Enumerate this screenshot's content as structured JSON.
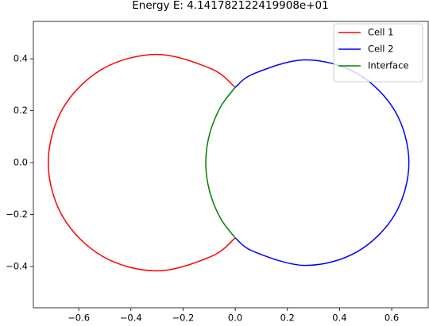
{
  "chart_data": {
    "type": "line",
    "title": "Energy E: 4.141782122419908e+01",
    "xlim": [
      -0.774,
      0.74
    ],
    "ylim": [
      -0.559,
      0.544
    ],
    "xticks": [
      {
        "value": -0.6,
        "label": "−0.6"
      },
      {
        "value": -0.4,
        "label": "−0.4"
      },
      {
        "value": -0.2,
        "label": "−0.2"
      },
      {
        "value": 0,
        "label": "0.0"
      },
      0.2,
      0.4,
      0.6
    ],
    "yticks": [
      {
        "value": -0.4,
        "label": "−0.4"
      },
      {
        "value": -0.2,
        "label": "−0.2"
      },
      {
        "value": 0,
        "label": "0.0"
      },
      0.2,
      0.4
    ],
    "legend": "upper right",
    "series": [
      {
        "name": "Cell 1",
        "color": "#ff0000",
        "x": [
          0,
          -0.0915,
          -0.3,
          -0.5085,
          -0.6611,
          -0.717,
          -0.6611,
          -0.5085,
          -0.3,
          -0.0915,
          0
        ],
        "values": [
          0.29,
          0.3611,
          0.417,
          0.3611,
          0.2085,
          0,
          -0.2085,
          -0.3611,
          -0.417,
          -0.3611,
          -0.29
        ]
      },
      {
        "name": "Cell 2",
        "color": "#0000ff",
        "x": [
          0,
          0.072,
          0.27,
          0.468,
          0.613,
          0.666,
          0.613,
          0.468,
          0.27,
          0.072,
          0
        ],
        "values": [
          0.29,
          0.343,
          0.396,
          0.343,
          0.198,
          0,
          -0.198,
          -0.343,
          -0.396,
          -0.343,
          -0.29
        ]
      },
      {
        "name": "Interface",
        "color": "#008000",
        "x": [
          0,
          -0.056,
          -0.098,
          -0.113,
          -0.098,
          -0.056,
          0
        ],
        "values": [
          0.29,
          0.215,
          0.111,
          0,
          -0.111,
          -0.215,
          -0.29
        ]
      }
    ]
  }
}
